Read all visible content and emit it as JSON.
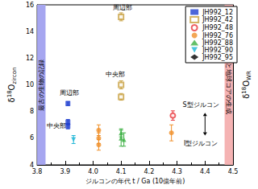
{
  "chart_data": {
    "type": "scatter",
    "xlabel": "ジルコンの年代 t / Ga (10億年前)",
    "ylabel": {
      "base": "δ",
      "sup": "18",
      "element": "O",
      "sub": "zircon"
    },
    "y2label": {
      "base": "δ",
      "sup": "18",
      "element": "O",
      "sub": "WR"
    },
    "xlim": [
      3.8,
      4.5
    ],
    "xticks": [
      3.8,
      3.9,
      {
        "value": 4,
        "label": "4.0"
      },
      4.1,
      4.2,
      4.3,
      4.4,
      4.5
    ],
    "ylim": [
      4,
      16
    ],
    "yticks": [
      4,
      6,
      8,
      10,
      12,
      14,
      16
    ],
    "grid": false,
    "legend": "upper right",
    "series": [
      {
        "name": "JH992_12",
        "color": "#1f3fcf",
        "marker": "square",
        "x": [
          3.91,
          3.91,
          3.91
        ],
        "values": [
          8.6,
          7.2,
          6.9
        ],
        "errors": [
          0.15,
          0.2,
          0.2
        ]
      },
      {
        "name": "JH992_42",
        "color": "#c8a040",
        "marker": "open_square",
        "x": [
          4.1,
          4.1,
          4.1
        ],
        "values": [
          15.1,
          10.0,
          9.1
        ],
        "errors": [
          0.3,
          0.3,
          0.25
        ]
      },
      {
        "name": "JH992_48",
        "color": "#e8383d",
        "marker": "open_circle",
        "x": [
          4.285
        ],
        "values": [
          7.7
        ],
        "errors": [
          0.35
        ]
      },
      {
        "name": "JH992_76",
        "color": "#f0902a",
        "marker": "circle",
        "x": [
          4.02,
          4.02,
          4.02,
          4.28
        ],
        "values": [
          6.6,
          6.0,
          5.5,
          6.4
        ],
        "errors": [
          0.4,
          0.4,
          0.4,
          0.6
        ]
      },
      {
        "name": "JH992_88",
        "color": "#3cb043",
        "marker": "triangle",
        "x": [
          4.1,
          4.1,
          4.11
        ],
        "values": [
          6.4,
          6.0,
          5.9
        ],
        "errors": [
          0.3,
          0.6,
          0.5
        ]
      },
      {
        "name": "JH992_90",
        "color": "#1fb6d6",
        "marker": "triangle_down",
        "x": [
          3.93
        ],
        "values": [
          5.9
        ],
        "errors": [
          0.3
        ]
      },
      {
        "name": "JH992_95",
        "color": "#000000",
        "marker": "diamond",
        "x": [],
        "values": [],
        "errors": []
      }
    ],
    "bands": [
      {
        "label": "最古の生物の記録",
        "x": [
          3.8,
          3.83
        ],
        "color": "#a6a6f0"
      },
      {
        "label": "月と地球コアの生成",
        "x": [
          4.47,
          4.5
        ],
        "color": "#f5b3b3"
      }
    ],
    "annotations": [
      {
        "text": "周辺部",
        "x": 4.105,
        "y": 15.8
      },
      {
        "text": "中央部",
        "x": 4.08,
        "y": 10.8
      },
      {
        "text": "周辺部",
        "x": 3.915,
        "y": 9.4
      },
      {
        "text": "中央部",
        "x": 3.87,
        "y": 6.9
      },
      {
        "text": "S型ジルコン",
        "x": 4.385,
        "y": 8.5
      },
      {
        "text": "I型ジルコン",
        "x": 4.385,
        "y": 5.6
      }
    ],
    "arrow": {
      "x": 4.4,
      "y": [
        6.2,
        7.9
      ]
    }
  }
}
